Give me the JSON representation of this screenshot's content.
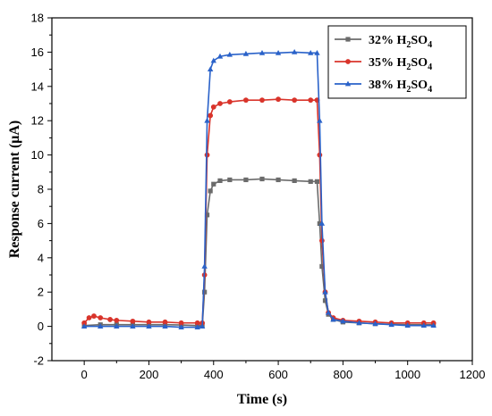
{
  "chart_data": {
    "type": "line",
    "xlabel": "Time (s)",
    "ylabel": "Response current (μA)",
    "xlim": [
      -100,
      1200
    ],
    "ylim": [
      -2,
      18
    ],
    "xticks": [
      0,
      200,
      400,
      600,
      800,
      1000,
      1200
    ],
    "yticks": [
      -2,
      0,
      2,
      4,
      6,
      8,
      10,
      12,
      14,
      16,
      18
    ],
    "legend_position": "top-right",
    "series": [
      {
        "name": "32% H2SO4",
        "name_prefix": "32%  H",
        "name_sub1": "2",
        "name_mid": "SO",
        "name_sub2": "4",
        "color": "#6b6b6b",
        "marker": "square",
        "points": [
          [
            0,
            0.05
          ],
          [
            50,
            0.1
          ],
          [
            100,
            0.1
          ],
          [
            150,
            0.1
          ],
          [
            200,
            0.1
          ],
          [
            250,
            0.1
          ],
          [
            300,
            0.08
          ],
          [
            350,
            0.05
          ],
          [
            365,
            0.05
          ],
          [
            372,
            2.0
          ],
          [
            380,
            6.5
          ],
          [
            390,
            7.9
          ],
          [
            400,
            8.3
          ],
          [
            420,
            8.5
          ],
          [
            450,
            8.55
          ],
          [
            500,
            8.55
          ],
          [
            550,
            8.6
          ],
          [
            600,
            8.55
          ],
          [
            650,
            8.5
          ],
          [
            700,
            8.45
          ],
          [
            720,
            8.45
          ],
          [
            728,
            6.0
          ],
          [
            735,
            3.5
          ],
          [
            745,
            1.5
          ],
          [
            755,
            0.7
          ],
          [
            770,
            0.4
          ],
          [
            800,
            0.25
          ],
          [
            850,
            0.2
          ],
          [
            900,
            0.15
          ],
          [
            950,
            0.12
          ],
          [
            1000,
            0.1
          ],
          [
            1050,
            0.1
          ],
          [
            1080,
            0.1
          ]
        ]
      },
      {
        "name": "35% H2SO4",
        "name_prefix": "35%  H",
        "name_sub1": "2",
        "name_mid": "SO",
        "name_sub2": "4",
        "color": "#d9342b",
        "marker": "circle",
        "points": [
          [
            0,
            0.2
          ],
          [
            15,
            0.5
          ],
          [
            30,
            0.6
          ],
          [
            50,
            0.5
          ],
          [
            80,
            0.4
          ],
          [
            100,
            0.35
          ],
          [
            150,
            0.3
          ],
          [
            200,
            0.25
          ],
          [
            250,
            0.25
          ],
          [
            300,
            0.2
          ],
          [
            350,
            0.2
          ],
          [
            365,
            0.2
          ],
          [
            372,
            3.0
          ],
          [
            380,
            10.0
          ],
          [
            390,
            12.3
          ],
          [
            400,
            12.8
          ],
          [
            420,
            13.0
          ],
          [
            450,
            13.1
          ],
          [
            500,
            13.2
          ],
          [
            550,
            13.2
          ],
          [
            600,
            13.25
          ],
          [
            650,
            13.2
          ],
          [
            700,
            13.2
          ],
          [
            720,
            13.2
          ],
          [
            728,
            10.0
          ],
          [
            735,
            5.0
          ],
          [
            745,
            2.0
          ],
          [
            755,
            0.8
          ],
          [
            770,
            0.5
          ],
          [
            800,
            0.35
          ],
          [
            850,
            0.3
          ],
          [
            900,
            0.25
          ],
          [
            950,
            0.2
          ],
          [
            1000,
            0.2
          ],
          [
            1050,
            0.2
          ],
          [
            1080,
            0.2
          ]
        ]
      },
      {
        "name": "38% H2SO4",
        "name_prefix": "38%  H",
        "name_sub1": "2",
        "name_mid": "SO",
        "name_sub2": "4",
        "color": "#2a62c9",
        "marker": "triangle",
        "points": [
          [
            0,
            0.0
          ],
          [
            50,
            0.0
          ],
          [
            100,
            0.0
          ],
          [
            150,
            0.0
          ],
          [
            200,
            0.0
          ],
          [
            250,
            0.0
          ],
          [
            300,
            -0.05
          ],
          [
            350,
            -0.05
          ],
          [
            365,
            0.0
          ],
          [
            372,
            3.5
          ],
          [
            380,
            12.0
          ],
          [
            390,
            15.0
          ],
          [
            400,
            15.5
          ],
          [
            420,
            15.75
          ],
          [
            450,
            15.85
          ],
          [
            500,
            15.9
          ],
          [
            550,
            15.95
          ],
          [
            600,
            15.95
          ],
          [
            650,
            16.0
          ],
          [
            700,
            15.95
          ],
          [
            720,
            15.95
          ],
          [
            728,
            12.0
          ],
          [
            735,
            6.0
          ],
          [
            745,
            2.0
          ],
          [
            755,
            0.8
          ],
          [
            770,
            0.4
          ],
          [
            800,
            0.3
          ],
          [
            850,
            0.2
          ],
          [
            900,
            0.15
          ],
          [
            950,
            0.1
          ],
          [
            1000,
            0.05
          ],
          [
            1050,
            0.05
          ],
          [
            1080,
            0.05
          ]
        ]
      }
    ]
  }
}
